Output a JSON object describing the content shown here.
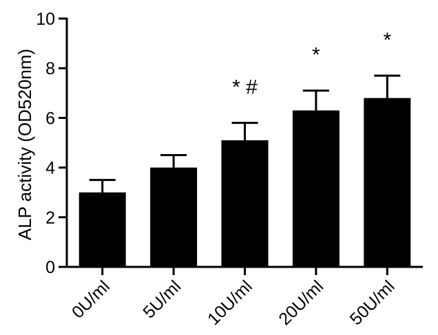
{
  "chart_data": {
    "type": "bar",
    "title": "",
    "xlabel": "",
    "ylabel": "ALP activity (OD520nm)",
    "categories": [
      "0U/ml",
      "5U/ml",
      "10U/ml",
      "20U/ml",
      "50U/ml"
    ],
    "values": [
      3.0,
      4.0,
      5.1,
      6.3,
      6.8
    ],
    "error_upper": [
      0.5,
      0.5,
      0.7,
      0.8,
      0.9
    ],
    "annotations": [
      "",
      "",
      "* #",
      "*",
      "*"
    ],
    "ylim": [
      0,
      10
    ],
    "yticks": [
      0,
      2,
      4,
      6,
      8,
      10
    ],
    "grid": false,
    "bar_color": "#000000"
  }
}
